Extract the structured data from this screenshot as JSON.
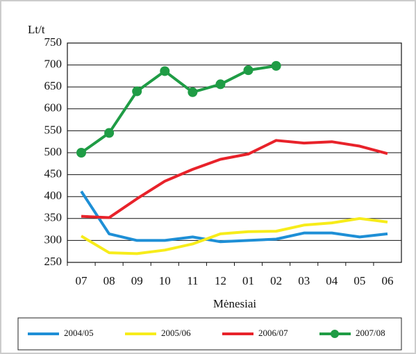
{
  "chart_data": {
    "type": "line",
    "y_label": "Lt/t",
    "x_label": "Mėnesiai",
    "categories": [
      "07",
      "08",
      "09",
      "10",
      "11",
      "12",
      "01",
      "02",
      "03",
      "04",
      "05",
      "06"
    ],
    "ylim": [
      250,
      750
    ],
    "yticks": [
      250,
      300,
      350,
      400,
      450,
      500,
      550,
      600,
      650,
      700,
      750
    ],
    "grid": true,
    "legend": "bottom",
    "series": [
      {
        "name": "2004/05",
        "color": "#1e8fd6",
        "values": [
          412,
          315,
          300,
          300,
          308,
          297,
          300,
          303,
          317,
          317,
          308,
          315
        ]
      },
      {
        "name": "2005/06",
        "color": "#f7ec1a",
        "values": [
          310,
          272,
          270,
          278,
          292,
          315,
          320,
          321,
          335,
          340,
          350,
          342
        ]
      },
      {
        "name": "2006/07",
        "color": "#e8222a",
        "values": [
          355,
          352,
          395,
          435,
          462,
          485,
          497,
          528,
          522,
          525,
          515,
          498
        ]
      },
      {
        "name": "2007/08",
        "color": "#1f9c45",
        "markers": true,
        "values": [
          500,
          545,
          640,
          686,
          638,
          656,
          688,
          698,
          null,
          null,
          null,
          null
        ]
      }
    ]
  }
}
